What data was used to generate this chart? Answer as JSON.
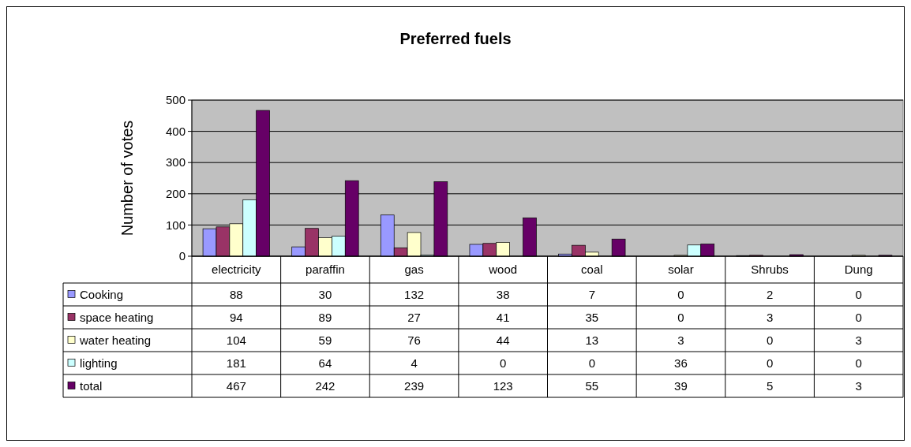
{
  "chart_data": {
    "type": "bar",
    "title": "Preferred fuels",
    "ylabel": "Number of votes",
    "categories": [
      "electricity",
      "paraffin",
      "gas",
      "wood",
      "coal",
      "solar",
      "Shrubs",
      "Dung"
    ],
    "series": [
      {
        "name": "Cooking",
        "color": "#9999ff",
        "values": [
          88,
          30,
          132,
          38,
          7,
          0,
          2,
          0
        ]
      },
      {
        "name": "space heating",
        "color": "#993366",
        "values": [
          94,
          89,
          27,
          41,
          35,
          0,
          3,
          0
        ]
      },
      {
        "name": "water heating",
        "color": "#ffffcc",
        "values": [
          104,
          59,
          76,
          44,
          13,
          3,
          0,
          3
        ]
      },
      {
        "name": "lighting",
        "color": "#ccffff",
        "values": [
          181,
          64,
          4,
          0,
          0,
          36,
          0,
          0
        ]
      },
      {
        "name": "total",
        "color": "#660066",
        "values": [
          467,
          242,
          239,
          123,
          55,
          39,
          5,
          3
        ]
      }
    ],
    "ylim": [
      0,
      500
    ],
    "yticks": [
      0,
      100,
      200,
      300,
      400,
      500
    ],
    "grid": "y",
    "legend": "bottom left",
    "data_labels": true
  }
}
